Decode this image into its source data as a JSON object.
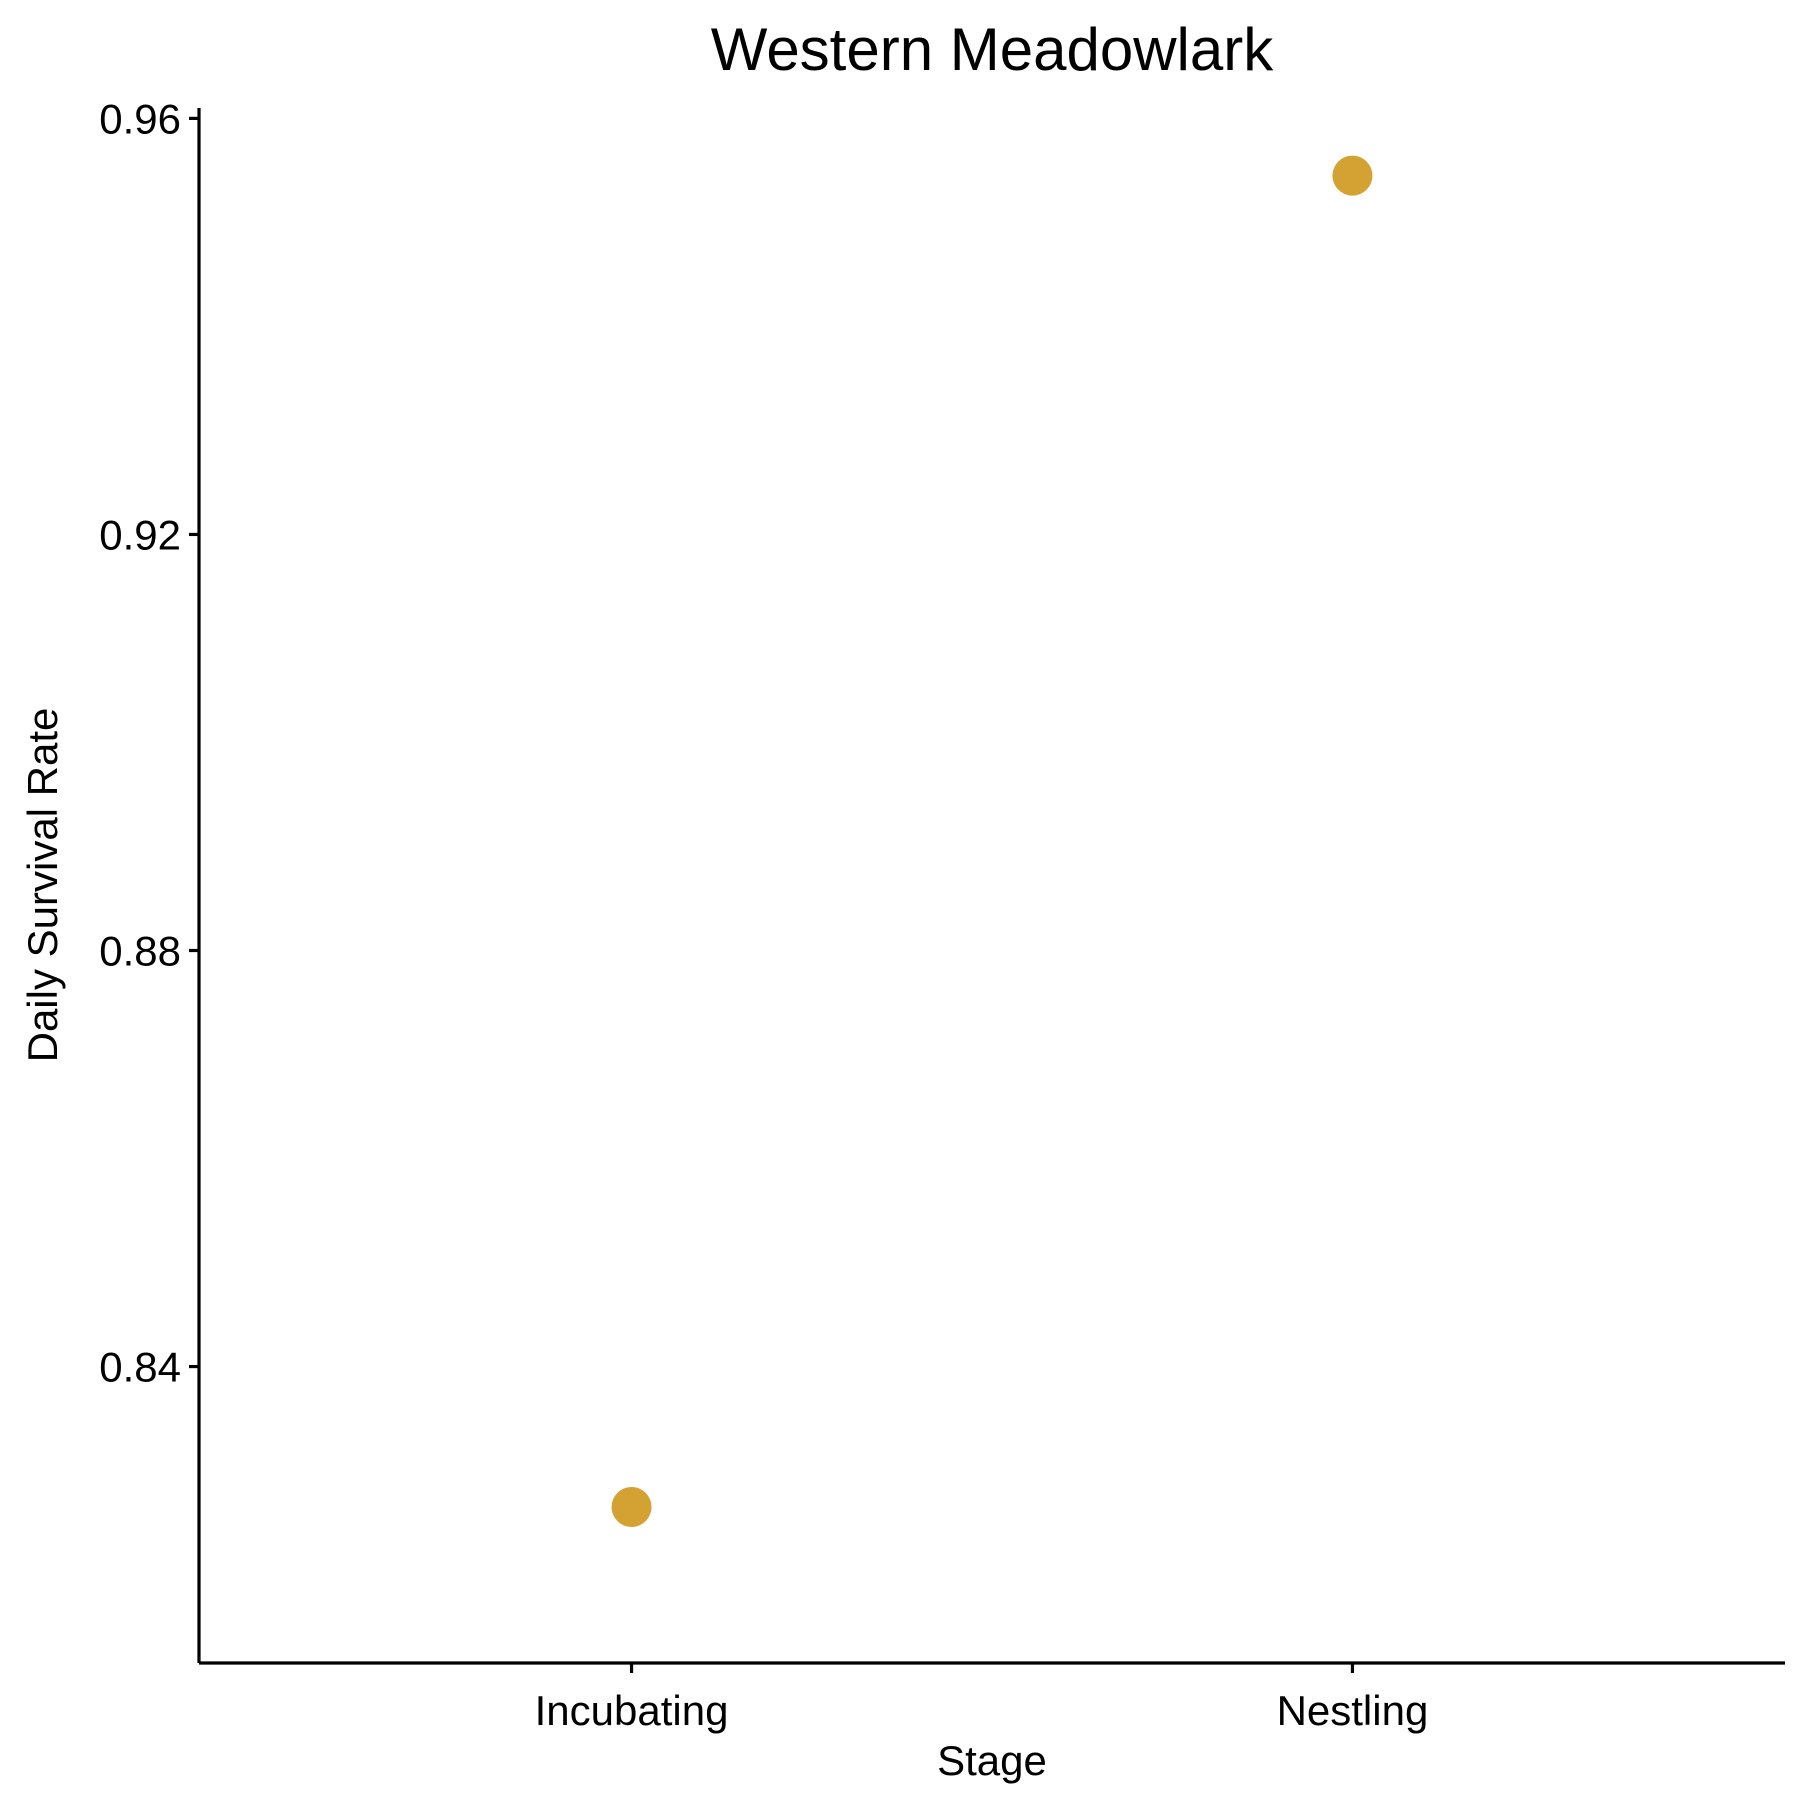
{
  "chart_data": {
    "type": "scatter",
    "title": "Western Meadowlark",
    "xlabel": "Stage",
    "ylabel": "Daily Survival Rate",
    "categories": [
      "Incubating",
      "Nestling"
    ],
    "values": [
      0.8265,
      0.9545
    ],
    "ylim": [
      0.8115,
      0.961
    ],
    "yticks": [
      0.84,
      0.88,
      0.92,
      0.96
    ],
    "ytick_labels": [
      "0.84",
      "0.88",
      "0.92",
      "0.96"
    ],
    "point_color": "#D4A233",
    "grid": false,
    "legend": "none"
  }
}
